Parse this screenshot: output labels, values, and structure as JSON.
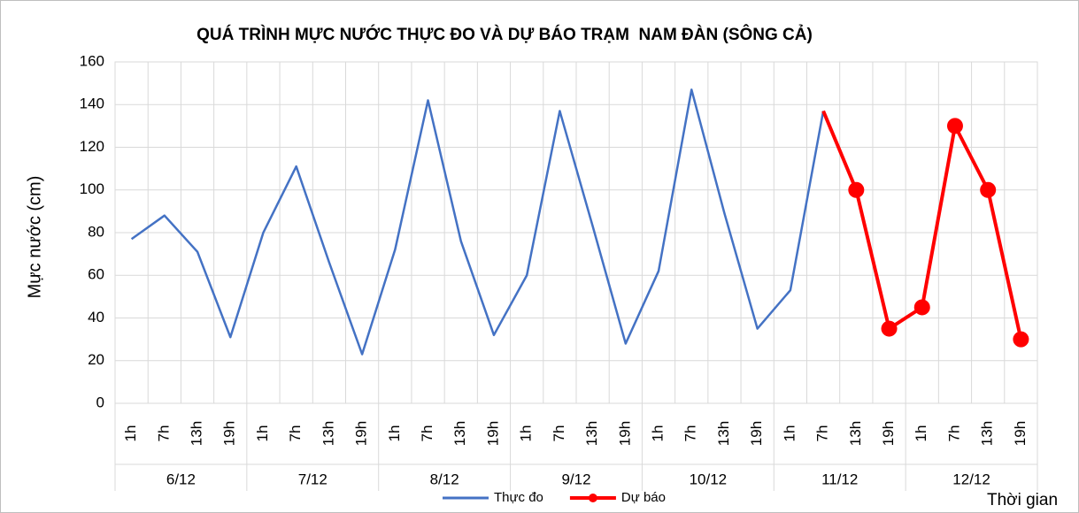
{
  "chart_data": {
    "type": "line",
    "title": "QUÁ TRÌNH MỰC NƯỚC THỰC ĐO VÀ DỰ BÁO TRẠM  NAM ĐÀN (SÔNG CẢ)",
    "y_label": "Mực nước (cm)",
    "x_label": "Thời gian",
    "categories": [
      "1h",
      "7h",
      "13h",
      "19h",
      "1h",
      "7h",
      "13h",
      "19h",
      "1h",
      "7h",
      "13h",
      "19h",
      "1h",
      "7h",
      "13h",
      "19h",
      "1h",
      "7h",
      "13h",
      "19h",
      "1h",
      "7h",
      "13h",
      "19h",
      "1h",
      "7h",
      "13h",
      "19h"
    ],
    "groups": [
      "6/12",
      "7/12",
      "8/12",
      "9/12",
      "10/12",
      "11/12",
      "12/12"
    ],
    "series": [
      {
        "name": "Thực đo",
        "color": "#4472c4",
        "markers": false,
        "values": [
          77,
          88,
          71,
          31,
          80,
          111,
          66,
          23,
          72,
          142,
          76,
          32,
          60,
          137,
          83,
          28,
          62,
          147,
          89,
          35,
          53,
          137,
          null,
          null,
          null,
          null,
          null,
          null
        ]
      },
      {
        "name": "Dự báo",
        "color": "#ff0000",
        "markers": true,
        "values": [
          null,
          null,
          null,
          null,
          null,
          null,
          null,
          null,
          null,
          null,
          null,
          null,
          null,
          null,
          null,
          null,
          null,
          null,
          null,
          null,
          null,
          137,
          100,
          35,
          45,
          130,
          100,
          30
        ]
      }
    ],
    "ylim": [
      0,
      160
    ],
    "yticks": [
      0,
      20,
      40,
      60,
      80,
      100,
      120,
      140,
      160
    ],
    "grid": true,
    "legend": "bottom"
  }
}
